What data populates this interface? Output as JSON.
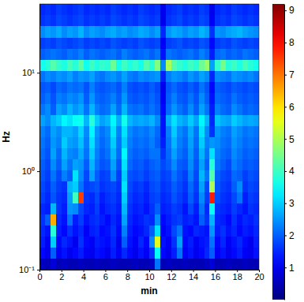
{
  "chart_data": {
    "type": "heatmap",
    "xlabel": "min",
    "ylabel": "Hz",
    "log": "y",
    "xlim": [
      0,
      20
    ],
    "ylim": [
      0.1,
      50
    ],
    "xticks": [
      0,
      2,
      4,
      6,
      8,
      10,
      12,
      14,
      16,
      18,
      20
    ],
    "yticks": [
      {
        "value": 0.1,
        "label": "10⁻¹"
      },
      {
        "value": 1,
        "label": "10⁰"
      },
      {
        "value": 10,
        "label": "10¹"
      }
    ],
    "zlim": [
      0,
      9.2
    ],
    "zticks": [
      1,
      2,
      3,
      4,
      5,
      6,
      7,
      8,
      9
    ],
    "xbins": [
      0,
      0.5,
      1,
      1.5,
      2,
      2.5,
      3,
      3.5,
      4,
      4.5,
      5,
      5.5,
      6,
      6.5,
      7,
      7.5,
      8,
      8.5,
      9,
      9.5,
      10,
      10.5,
      11,
      11.5,
      12,
      12.5,
      13,
      13.5,
      14,
      14.5,
      15,
      15.5,
      16,
      16.5,
      17,
      17.5,
      18,
      18.5,
      19,
      19.5,
      20
    ],
    "ybins": [
      0.1,
      0.13,
      0.168,
      0.218,
      0.282,
      0.365,
      0.473,
      0.613,
      0.794,
      1.03,
      1.33,
      1.73,
      2.24,
      2.9,
      3.76,
      4.87,
      6.31,
      8.18,
      10.6,
      13.7,
      17.8,
      23.0,
      29.9,
      38.7,
      50
    ],
    "values": [
      [
        0.6,
        0.5,
        0.8,
        0.5,
        0.6,
        0.5,
        0.5,
        0.6,
        0.5,
        0.5,
        0.6,
        0.5,
        0.5,
        0.6,
        0.5,
        0.5,
        0.5,
        0.6,
        0.5,
        0.5,
        0.6,
        2.2,
        0.5,
        0.6,
        0.5,
        0.5,
        0.6,
        0.5,
        0.5,
        0.5,
        0.6,
        0.8,
        0.5,
        0.5,
        0.6,
        0.5,
        0.5,
        0.6,
        0.5,
        0.5
      ],
      [
        1.2,
        1.0,
        2.0,
        1.1,
        1.3,
        1.0,
        1.2,
        1.4,
        1.1,
        1.0,
        1.3,
        1.2,
        1.0,
        1.4,
        1.1,
        1.5,
        1.2,
        1.0,
        1.3,
        1.1,
        1.6,
        3.5,
        1.2,
        1.0,
        1.4,
        2.2,
        1.1,
        1.3,
        1.0,
        1.2,
        1.5,
        2.0,
        1.1,
        1.3,
        1.0,
        1.2,
        1.4,
        1.1,
        1.0,
        1.3
      ],
      [
        1.4,
        1.1,
        3.0,
        1.2,
        1.5,
        1.3,
        1.0,
        1.6,
        1.2,
        1.1,
        1.4,
        1.3,
        1.2,
        1.5,
        1.0,
        2.0,
        1.3,
        1.1,
        1.5,
        1.2,
        2.4,
        5.5,
        1.3,
        1.1,
        1.6,
        2.6,
        1.2,
        1.4,
        1.1,
        1.3,
        1.4,
        2.2,
        1.2,
        1.5,
        1.1,
        1.3,
        1.5,
        1.2,
        1.0,
        1.4
      ],
      [
        1.5,
        1.3,
        3.8,
        1.4,
        1.2,
        1.6,
        1.3,
        1.5,
        1.1,
        1.4,
        1.5,
        1.2,
        1.3,
        1.6,
        1.2,
        2.3,
        1.4,
        1.2,
        1.3,
        1.5,
        2.0,
        3.2,
        1.1,
        1.3,
        1.8,
        2.2,
        1.3,
        1.2,
        1.5,
        1.4,
        1.3,
        2.5,
        1.4,
        1.6,
        1.3,
        1.5,
        1.2,
        1.4,
        1.3,
        1.5
      ],
      [
        1.6,
        2.0,
        6.5,
        1.5,
        1.3,
        2.2,
        1.4,
        1.7,
        1.3,
        1.5,
        1.6,
        1.4,
        1.2,
        1.5,
        1.3,
        2.6,
        1.5,
        1.3,
        1.4,
        1.6,
        1.5,
        2.4,
        1.2,
        1.4,
        1.6,
        1.7,
        1.4,
        1.5,
        1.3,
        2.0,
        1.6,
        2.8,
        1.5,
        1.4,
        1.2,
        1.6,
        1.3,
        1.5,
        1.4,
        1.6
      ],
      [
        1.5,
        1.4,
        2.8,
        1.6,
        1.4,
        2.5,
        2.4,
        1.8,
        1.5,
        1.4,
        1.7,
        1.3,
        1.5,
        1.6,
        1.4,
        2.8,
        1.6,
        1.4,
        1.5,
        1.3,
        1.6,
        2.0,
        1.4,
        1.5,
        1.7,
        1.6,
        1.3,
        1.8,
        1.4,
        2.2,
        1.5,
        3.5,
        1.6,
        1.5,
        1.4,
        1.7,
        1.5,
        1.3,
        1.6,
        1.5
      ],
      [
        1.7,
        1.5,
        1.9,
        1.6,
        1.5,
        2.6,
        4.0,
        7.5,
        1.6,
        1.5,
        1.8,
        1.4,
        1.6,
        1.7,
        1.5,
        3.0,
        1.7,
        1.5,
        1.6,
        1.4,
        1.7,
        1.8,
        1.5,
        1.6,
        1.9,
        1.7,
        1.5,
        2.0,
        1.6,
        2.4,
        1.7,
        7.8,
        1.8,
        1.6,
        1.5,
        1.8,
        2.2,
        1.4,
        1.7,
        1.6
      ],
      [
        1.8,
        1.6,
        2.0,
        1.7,
        1.6,
        2.8,
        3.0,
        2.2,
        1.7,
        1.8,
        1.9,
        1.6,
        1.7,
        1.8,
        1.6,
        3.2,
        1.8,
        1.6,
        1.7,
        1.5,
        1.8,
        1.9,
        1.6,
        1.7,
        2.0,
        1.8,
        1.6,
        2.1,
        1.7,
        2.6,
        1.8,
        5.0,
        1.9,
        1.7,
        1.6,
        2.0,
        2.4,
        1.6,
        1.8,
        1.7
      ],
      [
        1.9,
        1.7,
        2.2,
        1.8,
        2.3,
        2.0,
        3.2,
        2.4,
        1.8,
        2.6,
        2.0,
        1.7,
        1.8,
        2.4,
        1.7,
        3.0,
        1.9,
        1.8,
        1.9,
        1.7,
        1.9,
        2.0,
        1.7,
        1.8,
        2.2,
        1.9,
        1.7,
        2.3,
        1.8,
        2.8,
        2.2,
        4.2,
        2.0,
        1.8,
        1.7,
        2.1,
        2.0,
        1.7,
        1.9,
        1.8
      ],
      [
        2.0,
        1.8,
        2.4,
        2.0,
        2.6,
        2.2,
        2.6,
        2.5,
        2.0,
        2.8,
        2.2,
        1.9,
        2.0,
        2.6,
        1.9,
        3.2,
        2.1,
        1.9,
        2.0,
        1.8,
        2.0,
        2.1,
        1.8,
        2.0,
        2.4,
        2.0,
        1.9,
        2.4,
        1.9,
        2.6,
        2.0,
        3.8,
        2.2,
        2.0,
        1.8,
        2.3,
        2.1,
        1.9,
        2.0,
        1.9
      ],
      [
        2.1,
        1.9,
        2.6,
        2.1,
        2.8,
        2.4,
        2.3,
        2.7,
        2.2,
        3.0,
        2.3,
        2.0,
        2.2,
        2.8,
        2.1,
        3.4,
        2.2,
        2.0,
        2.1,
        2.0,
        2.2,
        2.2,
        1.6,
        2.1,
        2.6,
        2.2,
        2.0,
        2.5,
        2.0,
        2.8,
        2.2,
        3.2,
        2.3,
        2.1,
        2.0,
        2.4,
        2.2,
        2.0,
        2.1,
        2.0
      ],
      [
        2.2,
        2.0,
        2.5,
        2.3,
        3.0,
        2.6,
        2.5,
        2.9,
        2.3,
        3.2,
        2.4,
        2.1,
        2.3,
        3.0,
        2.2,
        3.0,
        2.3,
        2.1,
        2.2,
        2.1,
        2.3,
        2.0,
        1.4,
        2.2,
        2.8,
        2.3,
        2.1,
        2.6,
        2.1,
        3.0,
        2.3,
        2.5,
        2.4,
        2.2,
        2.1,
        2.5,
        2.3,
        2.1,
        2.2,
        2.1
      ],
      [
        2.3,
        2.1,
        2.6,
        2.4,
        2.8,
        2.8,
        2.6,
        3.1,
        2.4,
        3.4,
        2.5,
        2.2,
        2.4,
        3.2,
        2.3,
        3.2,
        2.4,
        2.2,
        2.3,
        2.2,
        2.4,
        2.1,
        1.3,
        2.3,
        3.0,
        2.4,
        2.2,
        2.7,
        2.2,
        3.2,
        2.4,
        1.6,
        2.5,
        2.3,
        2.2,
        2.6,
        2.4,
        2.2,
        2.3,
        2.2
      ],
      [
        2.6,
        2.4,
        2.8,
        3.0,
        3.4,
        3.2,
        3.5,
        3.6,
        2.8,
        3.8,
        3.0,
        2.6,
        2.8,
        3.4,
        2.7,
        3.6,
        2.8,
        2.6,
        2.7,
        2.6,
        2.8,
        2.4,
        1.3,
        2.7,
        3.2,
        2.8,
        2.6,
        3.0,
        2.6,
        3.4,
        2.8,
        1.5,
        2.9,
        2.7,
        2.6,
        3.0,
        2.8,
        2.6,
        2.7,
        2.6
      ],
      [
        2.2,
        2.4,
        2.0,
        2.6,
        2.4,
        2.8,
        2.5,
        2.7,
        2.2,
        2.8,
        2.3,
        2.1,
        2.2,
        2.6,
        2.1,
        2.8,
        2.2,
        2.1,
        2.2,
        2.0,
        2.2,
        2.0,
        1.2,
        2.1,
        2.5,
        2.2,
        2.0,
        2.4,
        2.0,
        2.6,
        2.2,
        1.4,
        2.3,
        2.1,
        2.0,
        2.4,
        2.2,
        2.0,
        2.1,
        2.0
      ],
      [
        2.0,
        2.2,
        1.9,
        2.3,
        2.2,
        2.4,
        2.3,
        2.5,
        2.0,
        2.5,
        2.1,
        2.0,
        2.1,
        2.3,
        2.0,
        2.5,
        2.0,
        1.9,
        2.0,
        1.9,
        2.1,
        1.9,
        1.1,
        2.0,
        2.3,
        2.0,
        1.9,
        2.2,
        1.9,
        2.4,
        2.0,
        1.3,
        2.1,
        2.0,
        1.9,
        2.2,
        2.0,
        1.9,
        2.0,
        1.9
      ],
      [
        1.9,
        2.0,
        1.8,
        2.1,
        2.0,
        2.2,
        2.1,
        2.2,
        1.9,
        2.3,
        2.0,
        1.9,
        2.0,
        2.1,
        1.9,
        2.3,
        1.9,
        1.8,
        1.9,
        1.8,
        2.0,
        1.8,
        1.0,
        1.9,
        2.1,
        1.9,
        1.8,
        2.0,
        1.8,
        2.2,
        1.9,
        1.2,
        2.0,
        1.9,
        1.8,
        2.0,
        1.9,
        1.8,
        1.9,
        1.8
      ],
      [
        2.2,
        2.4,
        2.3,
        2.5,
        2.4,
        2.6,
        2.3,
        2.5,
        2.4,
        2.6,
        2.3,
        2.2,
        2.4,
        2.5,
        2.3,
        2.6,
        2.3,
        2.2,
        2.4,
        2.3,
        2.4,
        2.5,
        1.4,
        2.3,
        2.5,
        2.4,
        2.2,
        2.5,
        2.3,
        2.6,
        2.4,
        1.5,
        2.4,
        2.3,
        2.2,
        2.5,
        2.4,
        2.3,
        2.4,
        2.2
      ],
      [
        3.6,
        3.8,
        4.2,
        3.9,
        3.7,
        4.1,
        3.8,
        4.3,
        3.6,
        4.0,
        3.7,
        3.9,
        3.8,
        4.4,
        3.6,
        4.0,
        3.7,
        3.9,
        3.6,
        4.2,
        3.8,
        4.6,
        2.4,
        5.0,
        4.2,
        3.9,
        3.7,
        4.0,
        3.8,
        4.4,
        4.8,
        2.6,
        3.9,
        4.5,
        3.8,
        4.0,
        3.7,
        4.1,
        3.8,
        3.6
      ],
      [
        2.0,
        2.1,
        2.2,
        2.1,
        2.0,
        2.2,
        2.1,
        2.3,
        2.0,
        2.2,
        2.1,
        2.0,
        2.1,
        2.2,
        2.0,
        2.3,
        2.1,
        2.0,
        2.1,
        2.2,
        2.0,
        2.2,
        1.3,
        2.2,
        2.1,
        2.0,
        2.1,
        2.2,
        2.0,
        2.3,
        2.1,
        1.4,
        2.1,
        2.2,
        2.0,
        2.1,
        2.0,
        2.2,
        2.1,
        2.0
      ],
      [
        1.7,
        1.8,
        1.7,
        1.9,
        1.8,
        1.7,
        1.8,
        1.9,
        1.7,
        1.8,
        1.7,
        1.8,
        1.7,
        1.9,
        1.8,
        1.7,
        1.8,
        1.7,
        1.9,
        1.8,
        1.7,
        1.8,
        1.1,
        1.7,
        1.8,
        1.9,
        1.7,
        1.8,
        1.7,
        1.9,
        1.8,
        1.2,
        1.7,
        1.8,
        1.7,
        1.9,
        1.8,
        1.7,
        1.8,
        1.7
      ],
      [
        2.4,
        2.6,
        2.5,
        2.7,
        2.4,
        2.6,
        2.5,
        2.8,
        2.4,
        2.6,
        2.5,
        2.4,
        2.6,
        2.7,
        2.5,
        2.6,
        2.4,
        2.5,
        2.7,
        2.6,
        2.4,
        2.6,
        1.5,
        2.5,
        2.7,
        2.6,
        2.4,
        2.6,
        2.5,
        2.8,
        2.6,
        1.6,
        2.5,
        2.4,
        2.6,
        2.7,
        2.8,
        2.6,
        2.5,
        2.4
      ],
      [
        1.6,
        1.7,
        1.6,
        1.8,
        1.7,
        1.6,
        1.7,
        1.8,
        1.6,
        1.7,
        1.6,
        1.7,
        1.6,
        1.8,
        1.7,
        1.6,
        1.7,
        1.6,
        1.8,
        1.7,
        1.6,
        1.7,
        1.0,
        1.6,
        1.7,
        1.8,
        1.6,
        1.7,
        1.6,
        1.8,
        1.7,
        1.1,
        1.6,
        1.7,
        1.6,
        1.8,
        1.7,
        1.6,
        1.7,
        1.6
      ],
      [
        1.5,
        1.6,
        1.5,
        1.7,
        1.6,
        1.5,
        1.6,
        1.7,
        1.5,
        1.6,
        1.5,
        1.6,
        1.5,
        1.7,
        1.6,
        1.5,
        1.6,
        1.5,
        1.7,
        1.6,
        1.5,
        1.6,
        1.0,
        1.5,
        1.6,
        1.7,
        1.5,
        1.6,
        1.5,
        1.7,
        1.6,
        1.0,
        1.5,
        1.6,
        1.5,
        1.7,
        1.6,
        1.5,
        1.6,
        1.5
      ]
    ]
  }
}
